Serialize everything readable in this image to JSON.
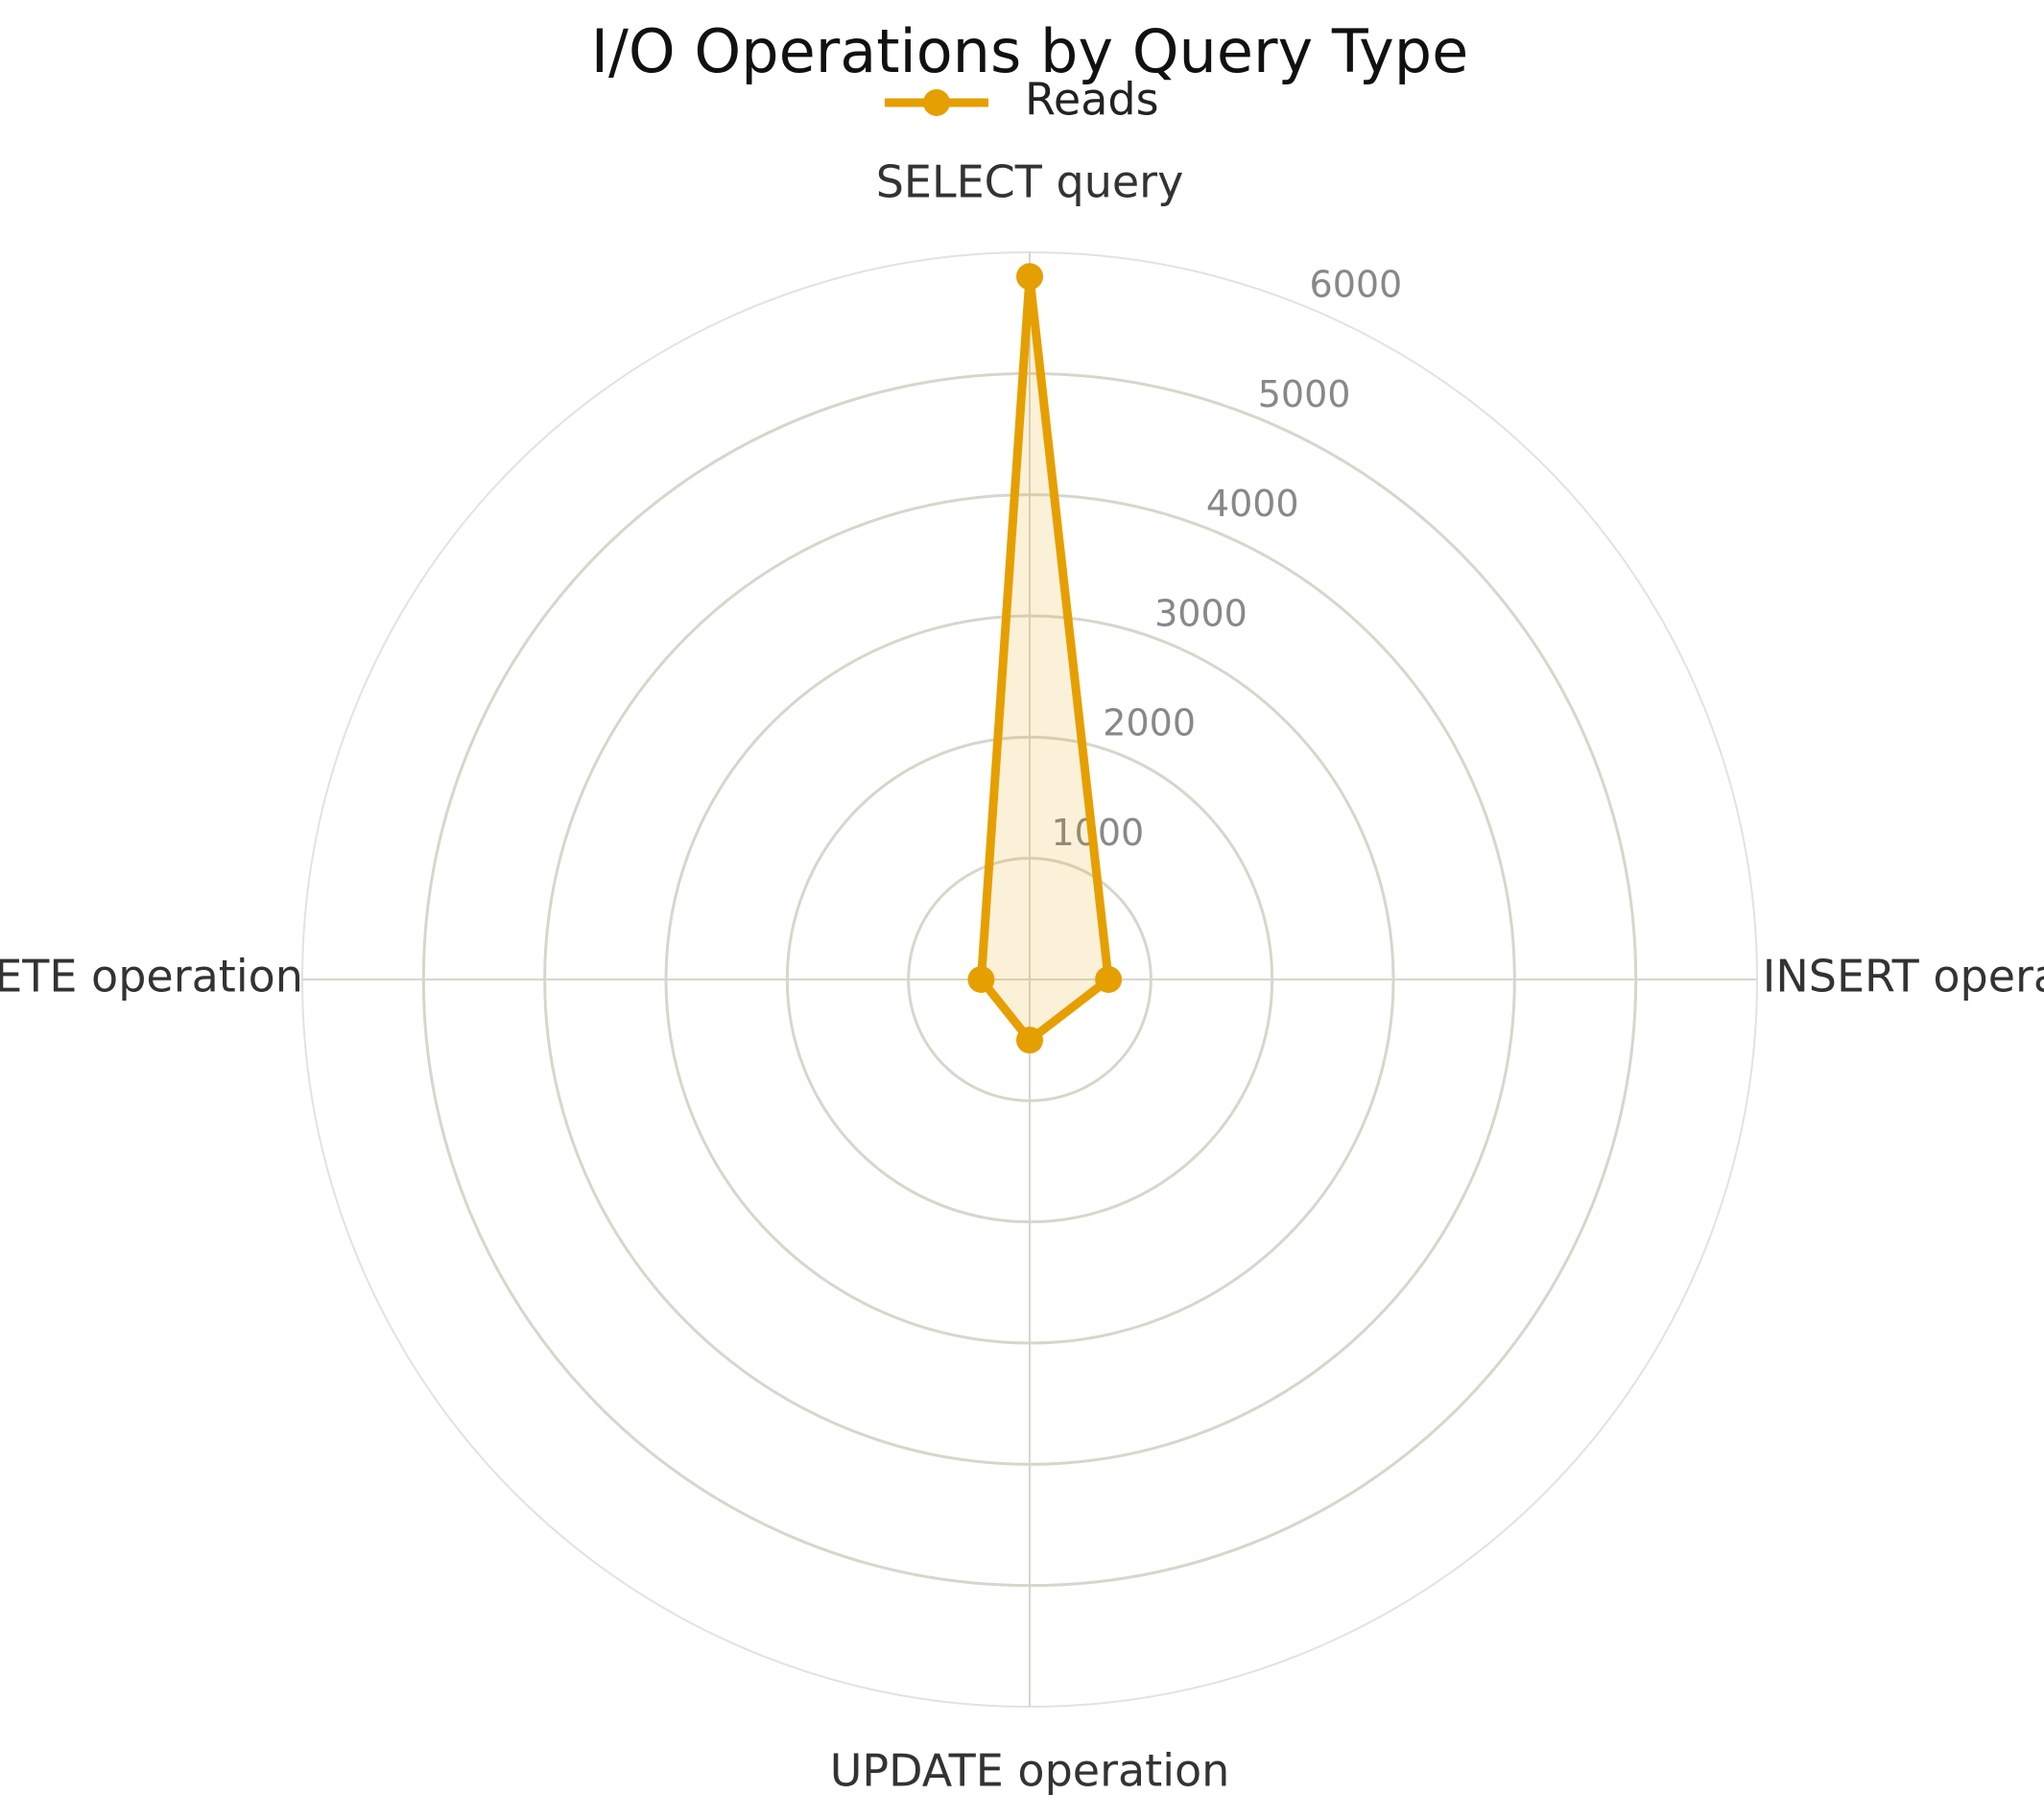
{
  "chart_data": {
    "type": "radar",
    "title": "I/O Operations by Query Type",
    "categories": [
      "SELECT query",
      "INSERT operation",
      "UPDATE operation",
      "DELETE operation"
    ],
    "series": [
      {
        "name": "Reads",
        "color": "#e69f00",
        "values": [
          5800,
          650,
          500,
          400
        ]
      }
    ],
    "ylim": [
      0,
      6000
    ],
    "yticks": [
      1000,
      2000,
      3000,
      4000,
      5000,
      6000
    ],
    "grid": true
  }
}
